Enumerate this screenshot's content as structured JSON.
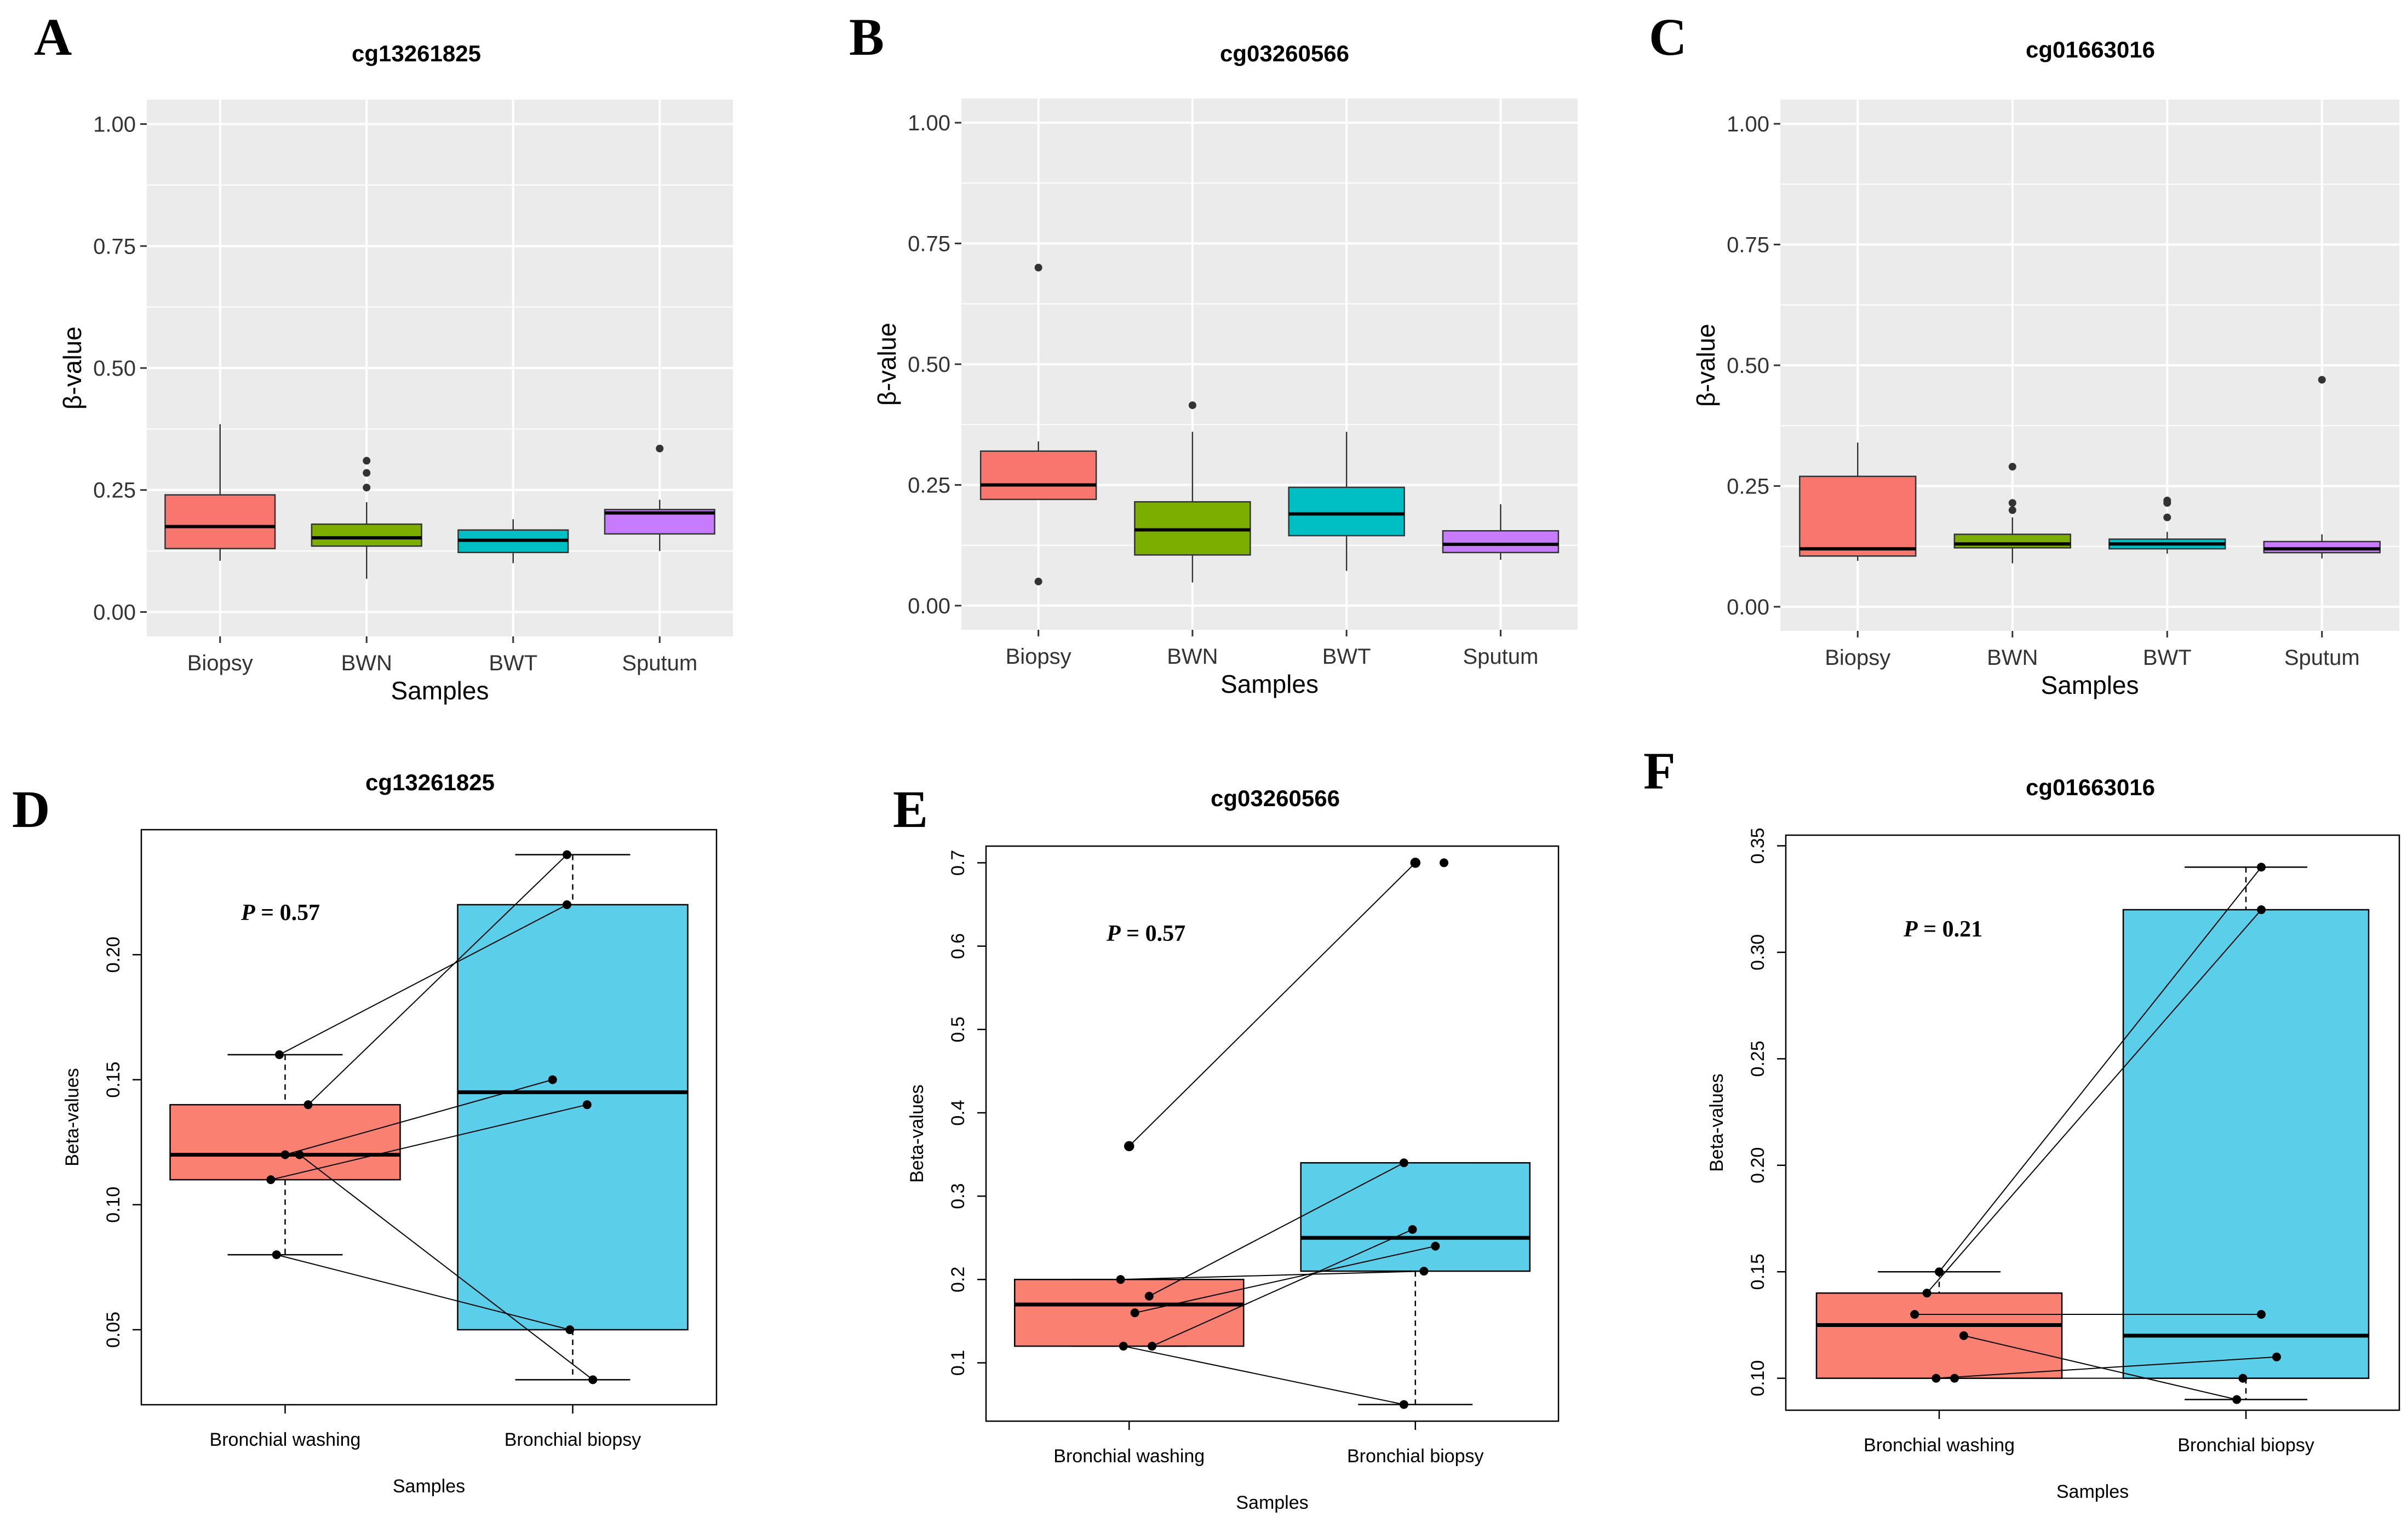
{
  "colors": {
    "biopsy": "#F8766D",
    "bwn": "#7CAE00",
    "bwt": "#00BFC4",
    "sputum": "#C77CFF",
    "washing": "#FA8072",
    "bronchial_biopsy": "#5BCEEA",
    "panel_bg": "#EBEBEB",
    "grid": "#FFFFFF"
  },
  "chart_data": [
    {
      "panel": "A",
      "type": "boxplot",
      "title": "cg13261825",
      "xlabel": "Samples",
      "ylabel": "β-value",
      "ylim": [
        -0.05,
        1.05
      ],
      "yticks": [
        "0.00",
        "0.25",
        "0.50",
        "0.75",
        "1.00"
      ],
      "categories": [
        "Biopsy",
        "BWN",
        "BWT",
        "Sputum"
      ],
      "boxes": [
        {
          "category": "Biopsy",
          "q1": 0.13,
          "median": 0.175,
          "q3": 0.24,
          "whisker_low": 0.105,
          "whisker_high": 0.385,
          "outliers": []
        },
        {
          "category": "BWN",
          "q1": 0.135,
          "median": 0.152,
          "q3": 0.18,
          "whisker_low": 0.068,
          "whisker_high": 0.225,
          "outliers": [
            0.255,
            0.285,
            0.31
          ]
        },
        {
          "category": "BWT",
          "q1": 0.122,
          "median": 0.147,
          "q3": 0.168,
          "whisker_low": 0.1,
          "whisker_high": 0.19,
          "outliers": []
        },
        {
          "category": "Sputum",
          "q1": 0.16,
          "median": 0.203,
          "q3": 0.21,
          "whisker_low": 0.125,
          "whisker_high": 0.23,
          "outliers": [
            0.335
          ]
        }
      ]
    },
    {
      "panel": "B",
      "type": "boxplot",
      "title": "cg03260566",
      "xlabel": "Samples",
      "ylabel": "β-value",
      "ylim": [
        -0.05,
        1.05
      ],
      "yticks": [
        "0.00",
        "0.25",
        "0.50",
        "0.75",
        "1.00"
      ],
      "categories": [
        "Biopsy",
        "BWN",
        "BWT",
        "Sputum"
      ],
      "boxes": [
        {
          "category": "Biopsy",
          "q1": 0.22,
          "median": 0.25,
          "q3": 0.32,
          "whisker_low": 0.22,
          "whisker_high": 0.34,
          "outliers": [
            0.05,
            0.7
          ]
        },
        {
          "category": "BWN",
          "q1": 0.105,
          "median": 0.157,
          "q3": 0.215,
          "whisker_low": 0.048,
          "whisker_high": 0.36,
          "outliers": [
            0.415
          ]
        },
        {
          "category": "BWT",
          "q1": 0.145,
          "median": 0.19,
          "q3": 0.245,
          "whisker_low": 0.072,
          "whisker_high": 0.36,
          "outliers": []
        },
        {
          "category": "Sputum",
          "q1": 0.11,
          "median": 0.127,
          "q3": 0.155,
          "whisker_low": 0.095,
          "whisker_high": 0.21,
          "outliers": []
        }
      ]
    },
    {
      "panel": "C",
      "type": "boxplot",
      "title": "cg01663016",
      "xlabel": "Samples",
      "ylabel": "β-value",
      "ylim": [
        -0.05,
        1.05
      ],
      "yticks": [
        "0.00",
        "0.25",
        "0.50",
        "0.75",
        "1.00"
      ],
      "categories": [
        "Biopsy",
        "BWN",
        "BWT",
        "Sputum"
      ],
      "boxes": [
        {
          "category": "Biopsy",
          "q1": 0.105,
          "median": 0.12,
          "q3": 0.27,
          "whisker_low": 0.095,
          "whisker_high": 0.34,
          "outliers": []
        },
        {
          "category": "BWN",
          "q1": 0.122,
          "median": 0.13,
          "q3": 0.15,
          "whisker_low": 0.09,
          "whisker_high": 0.185,
          "outliers": [
            0.2,
            0.215,
            0.29
          ]
        },
        {
          "category": "BWT",
          "q1": 0.12,
          "median": 0.13,
          "q3": 0.14,
          "whisker_low": 0.11,
          "whisker_high": 0.155,
          "outliers": [
            0.185,
            0.215,
            0.22
          ]
        },
        {
          "category": "Sputum",
          "q1": 0.112,
          "median": 0.12,
          "q3": 0.135,
          "whisker_low": 0.1,
          "whisker_high": 0.15,
          "outliers": [
            0.47
          ]
        }
      ]
    },
    {
      "panel": "D",
      "type": "paired_boxplot",
      "title": "cg13261825",
      "xlabel": "Samples",
      "ylabel": "Beta-values",
      "ylim": [
        0.02,
        0.25
      ],
      "yticks": [
        "0.05",
        "0.10",
        "0.15",
        "0.20"
      ],
      "p_label": "P",
      "p_value": "= 0.57",
      "categories": [
        "Bronchial washing",
        "Bronchial biopsy"
      ],
      "boxes": [
        {
          "category": "Bronchial washing",
          "q1": 0.11,
          "median": 0.12,
          "q3": 0.14,
          "whisker_low": 0.08,
          "whisker_high": 0.16,
          "outliers": []
        },
        {
          "category": "Bronchial biopsy",
          "q1": 0.05,
          "median": 0.145,
          "q3": 0.22,
          "whisker_low": 0.03,
          "whisker_high": 0.24,
          "outliers": []
        }
      ],
      "pairs": [
        {
          "x1": 0.98,
          "y1": 0.16,
          "x2": 1.98,
          "y2": 0.22
        },
        {
          "x1": 1.08,
          "y1": 0.14,
          "x2": 1.98,
          "y2": 0.24
        },
        {
          "x1": 0.95,
          "y1": 0.11,
          "x2": 2.05,
          "y2": 0.14
        },
        {
          "x1": 1.0,
          "y1": 0.12,
          "x2": 1.93,
          "y2": 0.15
        },
        {
          "x1": 1.05,
          "y1": 0.12,
          "x2": 2.07,
          "y2": 0.03
        },
        {
          "x1": 0.97,
          "y1": 0.08,
          "x2": 1.99,
          "y2": 0.05
        }
      ]
    },
    {
      "panel": "E",
      "type": "paired_boxplot",
      "title": "cg03260566",
      "xlabel": "Samples",
      "ylabel": "Beta-values",
      "ylim": [
        0.03,
        0.72
      ],
      "yticks": [
        "0.1",
        "0.2",
        "0.3",
        "0.4",
        "0.5",
        "0.6",
        "0.7"
      ],
      "p_label": "P",
      "p_value": "= 0.57",
      "categories": [
        "Bronchial washing",
        "Bronchial biopsy"
      ],
      "boxes": [
        {
          "category": "Bronchial washing",
          "q1": 0.12,
          "median": 0.17,
          "q3": 0.2,
          "whisker_low": 0.12,
          "whisker_high": 0.2,
          "outliers": [
            0.36
          ]
        },
        {
          "category": "Bronchial biopsy",
          "q1": 0.21,
          "median": 0.25,
          "q3": 0.34,
          "whisker_low": 0.05,
          "whisker_high": 0.34,
          "outliers": [
            0.7
          ]
        }
      ],
      "pairs": [
        {
          "x1": 1.0,
          "y1": 0.36,
          "x2": 2.0,
          "y2": 0.7
        },
        {
          "x1": 0.97,
          "y1": 0.2,
          "x2": 2.03,
          "y2": 0.21
        },
        {
          "x1": 1.07,
          "y1": 0.18,
          "x2": 1.96,
          "y2": 0.34
        },
        {
          "x1": 1.02,
          "y1": 0.16,
          "x2": 2.07,
          "y2": 0.24
        },
        {
          "x1": 1.08,
          "y1": 0.12,
          "x2": 1.99,
          "y2": 0.26
        },
        {
          "x1": 0.98,
          "y1": 0.12,
          "x2": 1.96,
          "y2": 0.05
        }
      ],
      "extra_points": [
        {
          "x": 2.1,
          "y": 0.7
        }
      ]
    },
    {
      "panel": "F",
      "type": "paired_boxplot",
      "title": "cg01663016",
      "xlabel": "Samples",
      "ylabel": "Beta-values",
      "ylim": [
        0.085,
        0.355
      ],
      "yticks": [
        "0.10",
        "0.15",
        "0.20",
        "0.25",
        "0.30",
        "0.35"
      ],
      "p_label": "P",
      "p_value": "= 0.21",
      "categories": [
        "Bronchial washing",
        "Bronchial biopsy"
      ],
      "boxes": [
        {
          "category": "Bronchial washing",
          "q1": 0.1,
          "median": 0.125,
          "q3": 0.14,
          "whisker_low": 0.1,
          "whisker_high": 0.15,
          "outliers": []
        },
        {
          "category": "Bronchial biopsy",
          "q1": 0.1,
          "median": 0.12,
          "q3": 0.32,
          "whisker_low": 0.09,
          "whisker_high": 0.34,
          "outliers": []
        }
      ],
      "pairs": [
        {
          "x1": 1.0,
          "y1": 0.15,
          "x2": 2.05,
          "y2": 0.34
        },
        {
          "x1": 0.96,
          "y1": 0.14,
          "x2": 2.05,
          "y2": 0.32
        },
        {
          "x1": 0.92,
          "y1": 0.13,
          "x2": 2.05,
          "y2": 0.13
        },
        {
          "x1": 0.99,
          "y1": 0.1,
          "x2": 2.1,
          "y2": 0.11
        },
        {
          "x1": 1.05,
          "y1": 0.1,
          "x2": 1.99,
          "y2": 0.1
        },
        {
          "x1": 1.08,
          "y1": 0.12,
          "x2": 1.97,
          "y2": 0.09
        }
      ]
    }
  ]
}
